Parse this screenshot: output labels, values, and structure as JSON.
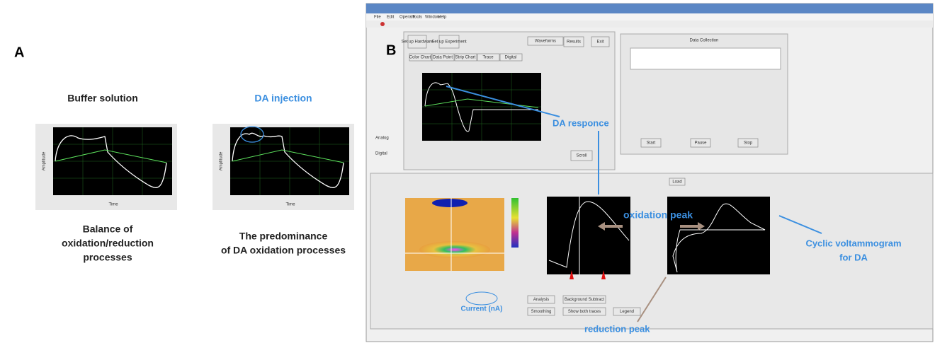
{
  "panel_a": {
    "label": "A",
    "buffer": {
      "title": "Buffer solution",
      "caption": [
        "Balance of",
        "oxidation/reduction",
        "processes"
      ]
    },
    "injection": {
      "title": "DA injection",
      "caption": [
        "The predominance",
        "of DA oxidation processes"
      ]
    },
    "x_axis": "Time",
    "y_axis": "Amplitude"
  },
  "panel_b": {
    "label": "B",
    "menu": [
      "File",
      "Edit",
      "Operate",
      "Tools",
      "Window",
      "Help"
    ],
    "buttons": {
      "hardware": "Set up Hardware",
      "experiment": "Set up Experiment",
      "waveforms": "Waveforms",
      "results": "Results",
      "exit": "Exit",
      "scroll": "Scroll",
      "start": "Start",
      "pause": "Pause",
      "stop": "Stop",
      "load": "Load",
      "analysis": "Analysis",
      "background": "Background Subtract",
      "smoothing": "Smoothing",
      "both": "Show both traces",
      "legend": "Legend"
    },
    "tabs": [
      "Color Chart",
      "Data Point",
      "Strip Chart",
      "Trace",
      "Digital"
    ],
    "data_collection": "Data Collection",
    "analog": "Analog",
    "digital": "Digital",
    "annotations": {
      "da_response": "DA responce",
      "oxidation": "oxidation peak",
      "cv": [
        "Cyclic voltammogram",
        "for DA"
      ],
      "reduction": "reduction peak",
      "current": "Current (nA)"
    }
  }
}
